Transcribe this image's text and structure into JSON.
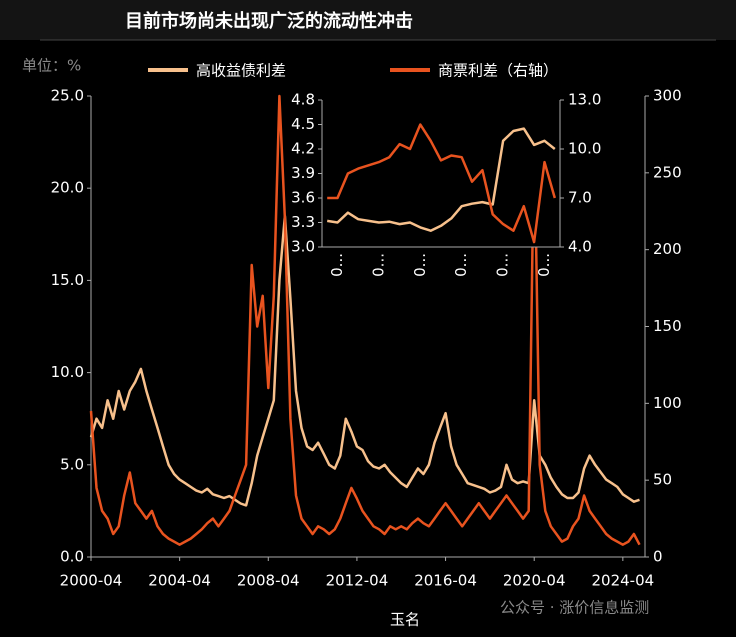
{
  "chart_data": [
    {
      "type": "line",
      "title": "目前市场尚未出现广泛的流动性冲击",
      "annotations": [
        "单位：%",
        "玉名",
        "公众号 · 涨价信息监测"
      ],
      "x": [
        "2000-04",
        "2000-07",
        "2000-10",
        "2001-01",
        "2001-04",
        "2001-07",
        "2001-10",
        "2002-01",
        "2002-04",
        "2002-07",
        "2002-10",
        "2003-01",
        "2003-04",
        "2003-07",
        "2003-10",
        "2004-01",
        "2004-04",
        "2004-07",
        "2004-10",
        "2005-01",
        "2005-04",
        "2005-07",
        "2005-10",
        "2006-01",
        "2006-04",
        "2006-07",
        "2006-10",
        "2007-01",
        "2007-04",
        "2007-07",
        "2007-10",
        "2008-01",
        "2008-04",
        "2008-07",
        "2008-10",
        "2009-01",
        "2009-04",
        "2009-07",
        "2009-10",
        "2010-01",
        "2010-04",
        "2010-07",
        "2010-10",
        "2011-01",
        "2011-04",
        "2011-07",
        "2011-10",
        "2012-01",
        "2012-04",
        "2012-07",
        "2012-10",
        "2013-01",
        "2013-04",
        "2013-07",
        "2013-10",
        "2014-01",
        "2014-04",
        "2014-07",
        "2014-10",
        "2015-01",
        "2015-04",
        "2015-07",
        "2015-10",
        "2016-01",
        "2016-04",
        "2016-07",
        "2016-10",
        "2017-01",
        "2017-04",
        "2017-07",
        "2017-10",
        "2018-01",
        "2018-04",
        "2018-07",
        "2018-10",
        "2019-01",
        "2019-04",
        "2019-07",
        "2019-10",
        "2020-01",
        "2020-04",
        "2020-07",
        "2020-10",
        "2021-01",
        "2021-04",
        "2021-07",
        "2021-10",
        "2022-01",
        "2022-04",
        "2022-07",
        "2022-10",
        "2023-01",
        "2023-04",
        "2023-07",
        "2023-10",
        "2024-01",
        "2024-04",
        "2024-07",
        "2024-10",
        "2025-01"
      ],
      "series": [
        {
          "name": "高收益债利差",
          "color": "#f7c08c",
          "values": [
            6.5,
            7.5,
            7.0,
            8.5,
            7.5,
            9.0,
            8.0,
            9.0,
            9.5,
            10.2,
            9.0,
            8.0,
            7.0,
            6.0,
            5.0,
            4.5,
            4.2,
            4.0,
            3.8,
            3.6,
            3.5,
            3.7,
            3.4,
            3.3,
            3.2,
            3.3,
            3.1,
            2.9,
            2.8,
            4.0,
            5.5,
            6.5,
            7.5,
            8.5,
            15.0,
            18.5,
            14.0,
            9.0,
            7.0,
            6.0,
            5.8,
            6.2,
            5.6,
            5.0,
            4.8,
            5.5,
            7.5,
            6.8,
            6.0,
            5.8,
            5.2,
            4.9,
            4.8,
            5.0,
            4.6,
            4.3,
            4.0,
            3.8,
            4.3,
            4.8,
            4.5,
            5.0,
            6.2,
            7.0,
            7.8,
            6.0,
            5.0,
            4.5,
            4.0,
            3.9,
            3.8,
            3.7,
            3.5,
            3.6,
            3.8,
            5.0,
            4.2,
            4.0,
            4.1,
            4.0,
            8.5,
            5.5,
            5.0,
            4.3,
            3.8,
            3.4,
            3.2,
            3.2,
            3.5,
            4.8,
            5.5,
            5.0,
            4.6,
            4.2,
            4.0,
            3.8,
            3.4,
            3.2,
            3.0,
            3.1
          ]
        },
        {
          "name": "商票利差（右轴）",
          "color": "#e8531f",
          "axis": "y2",
          "values": [
            95,
            45,
            30,
            25,
            15,
            20,
            40,
            55,
            35,
            30,
            25,
            30,
            20,
            15,
            12,
            10,
            8,
            10,
            12,
            15,
            18,
            22,
            25,
            20,
            25,
            30,
            40,
            50,
            60,
            190,
            150,
            170,
            110,
            170,
            300,
            220,
            90,
            40,
            25,
            20,
            15,
            20,
            18,
            15,
            18,
            25,
            35,
            45,
            38,
            30,
            25,
            20,
            18,
            15,
            20,
            18,
            20,
            18,
            22,
            25,
            22,
            20,
            25,
            30,
            35,
            30,
            25,
            20,
            25,
            30,
            35,
            30,
            25,
            30,
            35,
            40,
            35,
            30,
            25,
            30,
            280,
            60,
            30,
            20,
            15,
            10,
            12,
            20,
            25,
            40,
            30,
            25,
            20,
            15,
            12,
            10,
            8,
            10,
            15,
            8
          ]
        }
      ],
      "xlim": [
        "2000-04",
        "2025-04"
      ],
      "xticks": [
        "2000-04",
        "2004-04",
        "2008-04",
        "2012-04",
        "2016-04",
        "2020-04",
        "2024-04"
      ],
      "ylim": [
        0,
        25
      ],
      "yticks": [
        {
          "value": 0,
          "label": "0.0"
        },
        {
          "value": 5,
          "label": "5.0"
        },
        {
          "value": 10,
          "label": "10.0"
        },
        {
          "value": 15,
          "label": "15.0"
        },
        {
          "value": 20,
          "label": "20.0"
        },
        {
          "value": 25,
          "label": "25.0"
        }
      ],
      "y2lim": [
        0,
        300
      ],
      "y2ticks": [
        0,
        50,
        100,
        150,
        200,
        250,
        300
      ],
      "legend": "top"
    },
    {
      "type": "line",
      "categories": [
        null,
        "0...",
        null,
        null,
        null,
        "0...",
        null,
        null,
        null,
        "0...",
        null,
        null,
        null,
        "0...",
        null,
        null,
        null,
        "0...",
        null,
        null,
        null,
        "0...",
        null
      ],
      "series": [
        {
          "name": "高收益债利差",
          "color": "#f7c08c",
          "values": [
            3.32,
            3.3,
            3.42,
            3.34,
            3.32,
            3.3,
            3.31,
            3.28,
            3.3,
            3.24,
            3.2,
            3.26,
            3.35,
            3.5,
            3.53,
            3.55,
            3.52,
            4.3,
            4.42,
            4.45,
            4.25,
            4.3,
            4.2
          ]
        },
        {
          "name": "商票利差（右轴）",
          "color": "#e8531f",
          "axis": "y2",
          "values": [
            7.0,
            7.0,
            8.5,
            8.8,
            9.0,
            9.2,
            9.5,
            10.3,
            10.0,
            11.5,
            10.5,
            9.3,
            9.6,
            9.5,
            8.0,
            8.7,
            6.0,
            5.4,
            5.0,
            6.5,
            4.3,
            9.2,
            7.0
          ]
        }
      ],
      "ylim": [
        3.0,
        4.8
      ],
      "yticks": [
        {
          "value": 3.0,
          "label": "3.0"
        },
        {
          "value": 3.3,
          "label": "3.3"
        },
        {
          "value": 3.6,
          "label": "3.6"
        },
        {
          "value": 3.9,
          "label": "3.9"
        },
        {
          "value": 4.2,
          "label": "4.2"
        },
        {
          "value": 4.5,
          "label": "4.5"
        },
        {
          "value": 4.8,
          "label": "4.8"
        }
      ],
      "y2lim": [
        4.0,
        13.0
      ],
      "y2ticks": [
        {
          "value": 4,
          "label": "4.0"
        },
        {
          "value": 7,
          "label": "7.0"
        },
        {
          "value": 10,
          "label": "10.0"
        },
        {
          "value": 13,
          "label": "13.0"
        }
      ]
    }
  ]
}
